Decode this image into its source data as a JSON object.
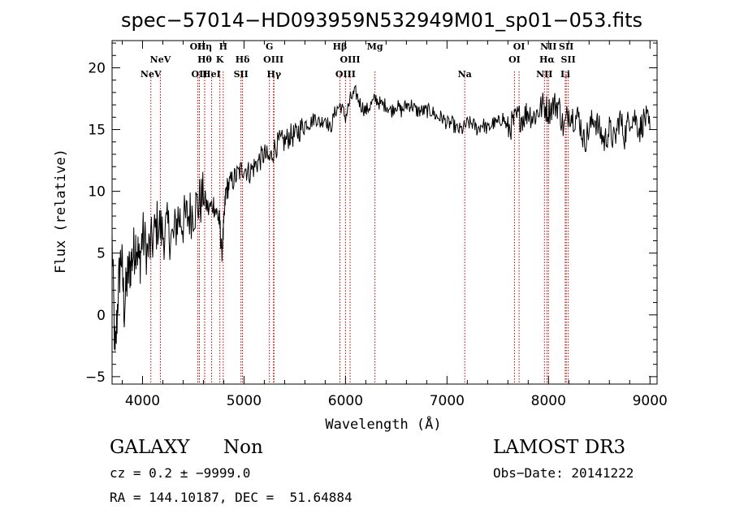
{
  "chart_data": {
    "type": "line",
    "title": "spec−57014−HD093959N532949M01_sp01−053.fits",
    "xlabel": "Wavelength (Å)",
    "ylabel": "Flux (relative)",
    "xlim": [
      3700,
      9070
    ],
    "ylim": [
      -5.6,
      22.2
    ],
    "xticks": [
      4000,
      5000,
      6000,
      7000,
      8000,
      9000
    ],
    "yticks": [
      -5,
      0,
      5,
      10,
      15,
      20
    ],
    "grid": false,
    "series": [
      {
        "name": "flux",
        "x": [
          3700,
          3730,
          3760,
          3790,
          3820,
          3850,
          3880,
          3910,
          3940,
          3970,
          4000,
          4050,
          4100,
          4150,
          4200,
          4250,
          4300,
          4350,
          4400,
          4450,
          4500,
          4550,
          4600,
          4650,
          4700,
          4740,
          4760,
          4780,
          4800,
          4820,
          4850,
          4900,
          4950,
          5000,
          5050,
          5100,
          5150,
          5200,
          5250,
          5300,
          5350,
          5400,
          5450,
          5500,
          5550,
          5600,
          5650,
          5700,
          5750,
          5800,
          5850,
          5900,
          5950,
          6000,
          6050,
          6100,
          6150,
          6200,
          6250,
          6300,
          6350,
          6400,
          6450,
          6500,
          6550,
          6600,
          6650,
          6700,
          6750,
          6800,
          6850,
          6900,
          6950,
          7000,
          7050,
          7100,
          7150,
          7200,
          7250,
          7300,
          7350,
          7400,
          7450,
          7500,
          7550,
          7600,
          7650,
          7700,
          7750,
          7800,
          7850,
          7900,
          7950,
          8000,
          8050,
          8100,
          8150,
          8200,
          8250,
          8300,
          8350,
          8400,
          8450,
          8500,
          8550,
          8600,
          8650,
          8700,
          8750,
          8800,
          8850,
          8900,
          8950,
          9000
        ],
        "y": [
          6,
          -3.8,
          2,
          5,
          0.5,
          3,
          4,
          5,
          6,
          4,
          6.5,
          5,
          6,
          7.5,
          6.5,
          7,
          6,
          8,
          7.5,
          8,
          8.5,
          9,
          9.5,
          8.5,
          9,
          8,
          7.5,
          5,
          7,
          10,
          10.5,
          11,
          11.5,
          12,
          11.5,
          12,
          12.5,
          13,
          12.5,
          13.5,
          14,
          14,
          14.5,
          14.5,
          15,
          15.5,
          15.5,
          16,
          15.5,
          16,
          15,
          16.5,
          17,
          16,
          17.5,
          18,
          17,
          16.5,
          17,
          17.5,
          17,
          17,
          16.5,
          17,
          16.5,
          17,
          17,
          16.5,
          16.5,
          16.5,
          16.5,
          16,
          16,
          15.5,
          15.5,
          15,
          15,
          15.5,
          15.5,
          15,
          15.5,
          15,
          15.5,
          15.5,
          16,
          15,
          15.5,
          16,
          16,
          16.5,
          16,
          16.5,
          17,
          16.5,
          17,
          17,
          15,
          16.5,
          16,
          16,
          14,
          15,
          16,
          15,
          14,
          15,
          14,
          16,
          14.5,
          16,
          16,
          15,
          16,
          15
        ]
      }
    ],
    "lines": [
      {
        "name": "NeV",
        "wl": 4082,
        "label": "NeV",
        "row": 2
      },
      {
        "name": "NeV",
        "wl": 4176,
        "label": "NeV",
        "row": 1
      },
      {
        "name": "OII",
        "wl": 4545,
        "label": "OII",
        "row": 0
      },
      {
        "name": "OII",
        "wl": 4560,
        "label": "OII",
        "row": 2
      },
      {
        "name": "H-eta",
        "wl": 4612,
        "label": "Hη",
        "row": 0
      },
      {
        "name": "H-theta",
        "wl": 4612,
        "label": "Hθ",
        "row": 1
      },
      {
        "name": "HeI",
        "wl": 4680,
        "label": "HeI",
        "row": 2
      },
      {
        "name": "K",
        "wl": 4762,
        "label": "K",
        "row": 1
      },
      {
        "name": "H",
        "wl": 4795,
        "label": "H",
        "row": 0
      },
      {
        "name": "H-delta",
        "wl": 4985,
        "label": "Hδ",
        "row": 1
      },
      {
        "name": "SII",
        "wl": 4970,
        "label": "SII",
        "row": 2
      },
      {
        "name": "G",
        "wl": 5250,
        "label": "G",
        "row": 0
      },
      {
        "name": "OIII",
        "wl": 5290,
        "label": "OIII",
        "row": 1
      },
      {
        "name": "H-gamma",
        "wl": 5295,
        "label": "Hγ",
        "row": 2
      },
      {
        "name": "H-beta",
        "wl": 5945,
        "label": "Hβ",
        "row": 0
      },
      {
        "name": "OIII",
        "wl": 6045,
        "label": "OIII",
        "row": 1
      },
      {
        "name": "OIII",
        "wl": 6000,
        "label": "OIII",
        "row": 2
      },
      {
        "name": "Mg",
        "wl": 6290,
        "label": "Mg",
        "row": 0
      },
      {
        "name": "Na",
        "wl": 7175,
        "label": "Na",
        "row": 2
      },
      {
        "name": "OI",
        "wl": 7710,
        "label": "OI",
        "row": 0
      },
      {
        "name": "OI",
        "wl": 7665,
        "label": "OI",
        "row": 1
      },
      {
        "name": "NII",
        "wl": 8000,
        "label": "NII",
        "row": 0
      },
      {
        "name": "H-alpha",
        "wl": 7985,
        "label": "Hα",
        "row": 1
      },
      {
        "name": "NII",
        "wl": 7960,
        "label": "NII",
        "row": 2
      },
      {
        "name": "SII",
        "wl": 8175,
        "label": "SII",
        "row": 0
      },
      {
        "name": "SII",
        "wl": 8195,
        "label": "SII",
        "row": 1
      },
      {
        "name": "Li",
        "wl": 8165,
        "label": "Li",
        "row": 2
      }
    ]
  },
  "info": {
    "class_label": "GALAXY",
    "subclass_label": "Non",
    "cz_text": "cz = 0.2 ± −9999.0",
    "radec_text": "RA = 144.10187, DEC =  51.64884",
    "survey_label": "LAMOST DR3",
    "obs_date_text": "Obs−Date: 20141222"
  },
  "colors": {
    "spectrum": "#000000",
    "line_marker": "#c00000",
    "background": "#ffffff"
  }
}
